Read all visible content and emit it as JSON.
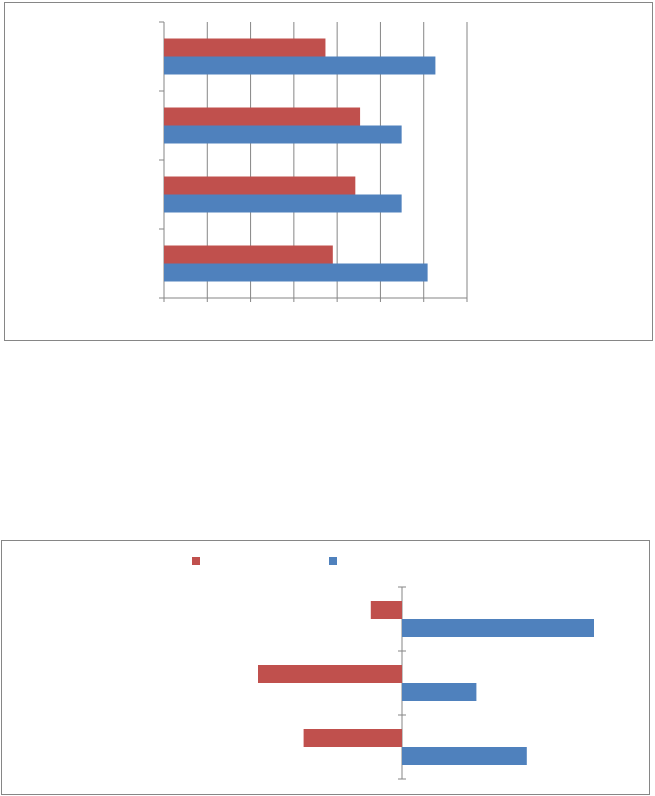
{
  "colors": {
    "series_a": "#c0504d",
    "series_b": "#4f81bd",
    "axis": "#868686",
    "grid": "#868686"
  },
  "chart_data": [
    {
      "type": "bar",
      "orientation": "horizontal",
      "title": "",
      "xlabel": "",
      "ylabel": "",
      "categories": [
        "",
        "",
        "",
        ""
      ],
      "xlim": [
        0,
        7
      ],
      "grid": true,
      "legend": "none",
      "series": [
        {
          "color": "#c0504d",
          "values": [
            3.73,
            4.53,
            4.42,
            3.9
          ]
        },
        {
          "color": "#4f81bd",
          "values": [
            6.27,
            5.49,
            5.49,
            6.09
          ]
        }
      ]
    },
    {
      "type": "bar",
      "orientation": "horizontal",
      "title": "",
      "xlabel": "",
      "ylabel": "",
      "categories": [
        "",
        "",
        ""
      ],
      "xlim": [
        -1,
        1
      ],
      "grid": false,
      "legend": "top",
      "series": [
        {
          "color": "#c0504d",
          "values": [
            -0.13,
            -0.6,
            -0.41
          ]
        },
        {
          "color": "#4f81bd",
          "values": [
            0.8,
            0.31,
            0.52
          ]
        }
      ]
    }
  ]
}
